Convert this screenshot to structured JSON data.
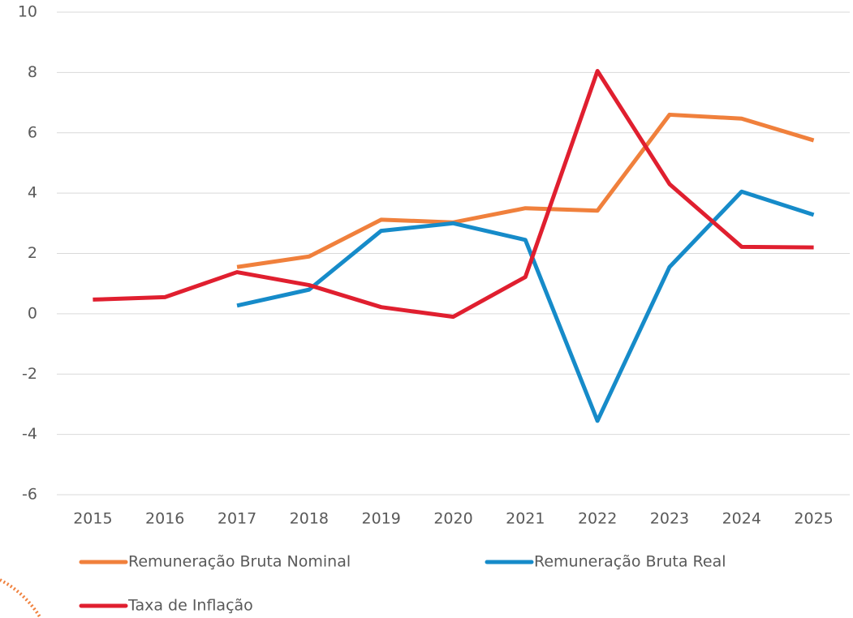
{
  "chart_data": {
    "type": "line",
    "categories": [
      "2015",
      "2016",
      "2017",
      "2018",
      "2019",
      "2020",
      "2021",
      "2022",
      "2023",
      "2024",
      "2025"
    ],
    "series": [
      {
        "name": "Remuneração Bruta Nominal",
        "color": "#f0803c",
        "values": [
          null,
          null,
          1.55,
          1.9,
          3.12,
          3.03,
          3.5,
          3.42,
          6.6,
          6.47,
          5.75
        ]
      },
      {
        "name": "Remuneração Bruta Real",
        "color": "#168bc9",
        "values": [
          null,
          null,
          0.27,
          0.8,
          2.75,
          3.0,
          2.45,
          -3.55,
          1.55,
          4.05,
          3.28
        ]
      },
      {
        "name": "Taxa de Inflação",
        "color": "#e01f2f",
        "values": [
          0.47,
          0.55,
          1.38,
          0.95,
          0.22,
          -0.1,
          1.22,
          8.05,
          4.3,
          2.22,
          2.2
        ]
      }
    ],
    "ylim": [
      -6,
      10
    ],
    "yticks": [
      -6,
      -4,
      -2,
      0,
      2,
      4,
      6,
      8,
      10
    ],
    "grid": true
  }
}
